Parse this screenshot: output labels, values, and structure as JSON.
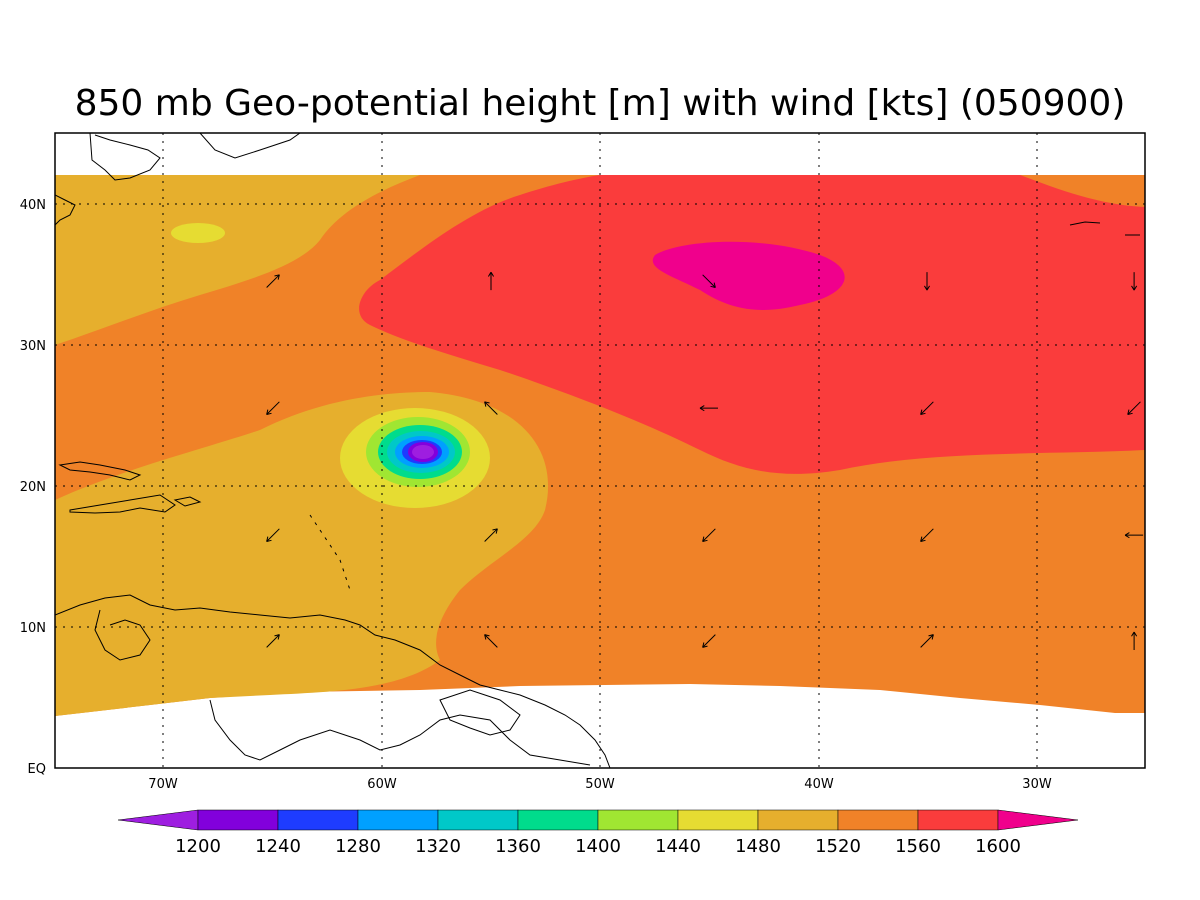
{
  "title": "850 mb Geo-potential height [m] with wind [kts] (050900)",
  "axes": {
    "lon_ticks": [
      "70W",
      "60W",
      "50W",
      "40W",
      "30W"
    ],
    "lat_ticks": [
      "EQ",
      "10N",
      "20N",
      "30N",
      "40N"
    ],
    "lon_range": [
      -75,
      -25
    ],
    "lat_range": [
      0,
      45
    ],
    "grid": true
  },
  "colorbar": {
    "labels": [
      "1200",
      "1240",
      "1280",
      "1320",
      "1360",
      "1400",
      "1440",
      "1480",
      "1520",
      "1560",
      "1600"
    ],
    "colors": [
      "#9e1ee0",
      "#8200dc",
      "#1e3cff",
      "#00a0ff",
      "#00c8c8",
      "#00dc8c",
      "#a0e632",
      "#e6dc32",
      "#e6af2d",
      "#f08228",
      "#fa3c3c",
      "#f0008c"
    ]
  },
  "chart_data": {
    "type": "heatmap",
    "title": "850 mb Geo-potential height [m] with wind [kts] (050900)",
    "variable": "850 mb geopotential height",
    "units": "m",
    "levels": [
      1200,
      1240,
      1280,
      1320,
      1360,
      1400,
      1440,
      1480,
      1520,
      1560,
      1600
    ],
    "xlim": [
      -75,
      -25
    ],
    "ylim": [
      0,
      45
    ],
    "features": [
      {
        "name": "low center",
        "lon": -58,
        "lat": 22.5,
        "min_height_band": "<1240"
      },
      {
        "name": "high center",
        "lon": -44,
        "lat": 35,
        "max_height_band": ">1600"
      }
    ],
    "wind_vectors": [
      {
        "lon": -65,
        "lat": 34.5,
        "dir": "NE"
      },
      {
        "lon": -55,
        "lat": 34.5,
        "dir": "N"
      },
      {
        "lon": -45,
        "lat": 34.5,
        "dir": "SE"
      },
      {
        "lon": -35,
        "lat": 34.5,
        "dir": "S"
      },
      {
        "lon": -25.5,
        "lat": 34.5,
        "dir": "S"
      },
      {
        "lon": -65,
        "lat": 25.5,
        "dir": "SW"
      },
      {
        "lon": -55,
        "lat": 25.5,
        "dir": "NW"
      },
      {
        "lon": -45,
        "lat": 25.5,
        "dir": "W"
      },
      {
        "lon": -35,
        "lat": 25.5,
        "dir": "SW"
      },
      {
        "lon": -25.5,
        "lat": 25.5,
        "dir": "SW"
      },
      {
        "lon": -65,
        "lat": 16.5,
        "dir": "SW"
      },
      {
        "lon": -55,
        "lat": 16.5,
        "dir": "NE"
      },
      {
        "lon": -45,
        "lat": 16.5,
        "dir": "SW"
      },
      {
        "lon": -35,
        "lat": 16.5,
        "dir": "SW"
      },
      {
        "lon": -25.5,
        "lat": 16.5,
        "dir": "W"
      },
      {
        "lon": -65,
        "lat": 9,
        "dir": "NE"
      },
      {
        "lon": -55,
        "lat": 9,
        "dir": "NW"
      },
      {
        "lon": -45,
        "lat": 9,
        "dir": "SW"
      },
      {
        "lon": -35,
        "lat": 9,
        "dir": "NE"
      },
      {
        "lon": -25.5,
        "lat": 9,
        "dir": "N"
      }
    ]
  }
}
